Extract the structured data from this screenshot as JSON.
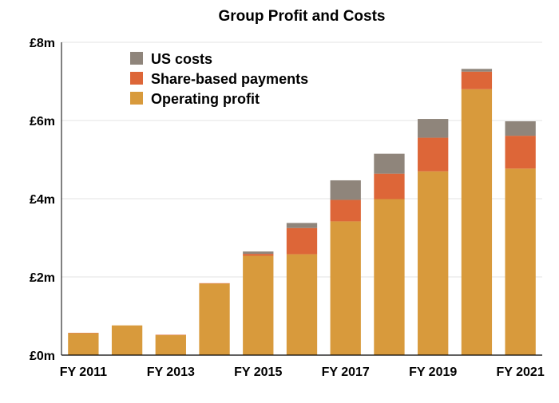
{
  "chart_data": {
    "type": "bar",
    "stacked": true,
    "title": "Group Profit and Costs",
    "xlabel": "",
    "ylabel": "",
    "ylim": [
      0,
      8
    ],
    "y_ticks": [
      0,
      2,
      4,
      6,
      8
    ],
    "y_tick_labels": [
      "£0m",
      "£2m",
      "£4m",
      "£6m",
      "£8m"
    ],
    "categories": [
      "FY 2011",
      "FY 2012",
      "FY 2013",
      "FY 2014",
      "FY 2015",
      "FY 2016",
      "FY 2017",
      "FY 2018",
      "FY 2019",
      "FY 2020",
      "FY 2021"
    ],
    "x_tick_labels": [
      "FY 2011",
      "",
      "FY 2013",
      "",
      "FY 2015",
      "",
      "FY 2017",
      "",
      "FY 2019",
      "",
      "FY 2021"
    ],
    "grid": "horizontal",
    "legend_position": "top-left",
    "series": [
      {
        "name": "Operating profit",
        "color": "#D89A3C",
        "values": [
          0.56,
          0.76,
          0.51,
          1.83,
          2.54,
          2.58,
          3.42,
          3.99,
          4.7,
          6.8,
          4.77
        ]
      },
      {
        "name": "Share-based payments",
        "color": "#DD6638",
        "values": [
          0.01,
          0.0,
          0.01,
          0.01,
          0.05,
          0.67,
          0.55,
          0.65,
          0.86,
          0.45,
          0.84
        ]
      },
      {
        "name": "US costs",
        "color": "#8F857B",
        "values": [
          0.0,
          0.0,
          0.0,
          0.0,
          0.06,
          0.13,
          0.5,
          0.51,
          0.48,
          0.07,
          0.37
        ]
      }
    ],
    "legend_order": [
      "US costs",
      "Share-based payments",
      "Operating profit"
    ]
  }
}
